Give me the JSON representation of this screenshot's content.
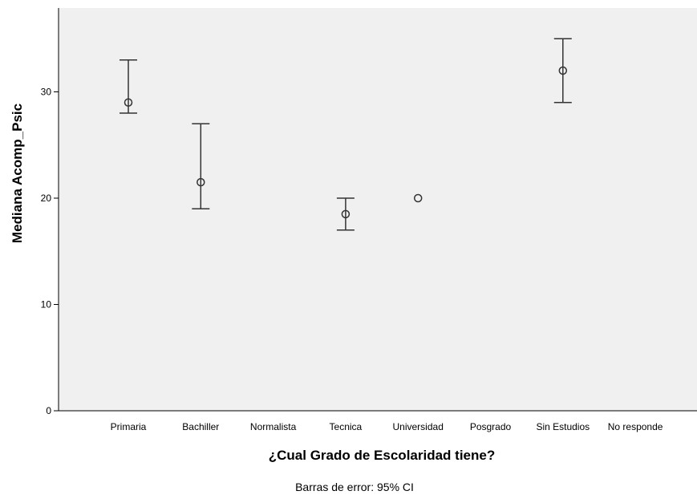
{
  "chart_data": {
    "type": "error_bar",
    "xlabel": "¿Cual Grado de Escolaridad tiene?",
    "ylabel": "Mediana Acomp_Psic",
    "footnote": "Barras de error: 95% CI",
    "categories": [
      "Primaria",
      "Bachiller",
      "Normalista",
      "Tecnica",
      "Universidad",
      "Posgrado",
      "Sin Estudios",
      "No responde"
    ],
    "median": [
      29,
      21.5,
      null,
      18.5,
      20,
      null,
      32,
      null
    ],
    "ci_low": [
      28,
      19,
      null,
      17,
      null,
      null,
      29,
      null
    ],
    "ci_high": [
      33,
      27,
      null,
      20,
      null,
      null,
      35,
      null
    ],
    "yticks": [
      0,
      10,
      20,
      30
    ],
    "ylim": [
      0,
      38
    ],
    "grid": false,
    "plot_background": "#f0f0f0",
    "marker_color": "#333333"
  }
}
